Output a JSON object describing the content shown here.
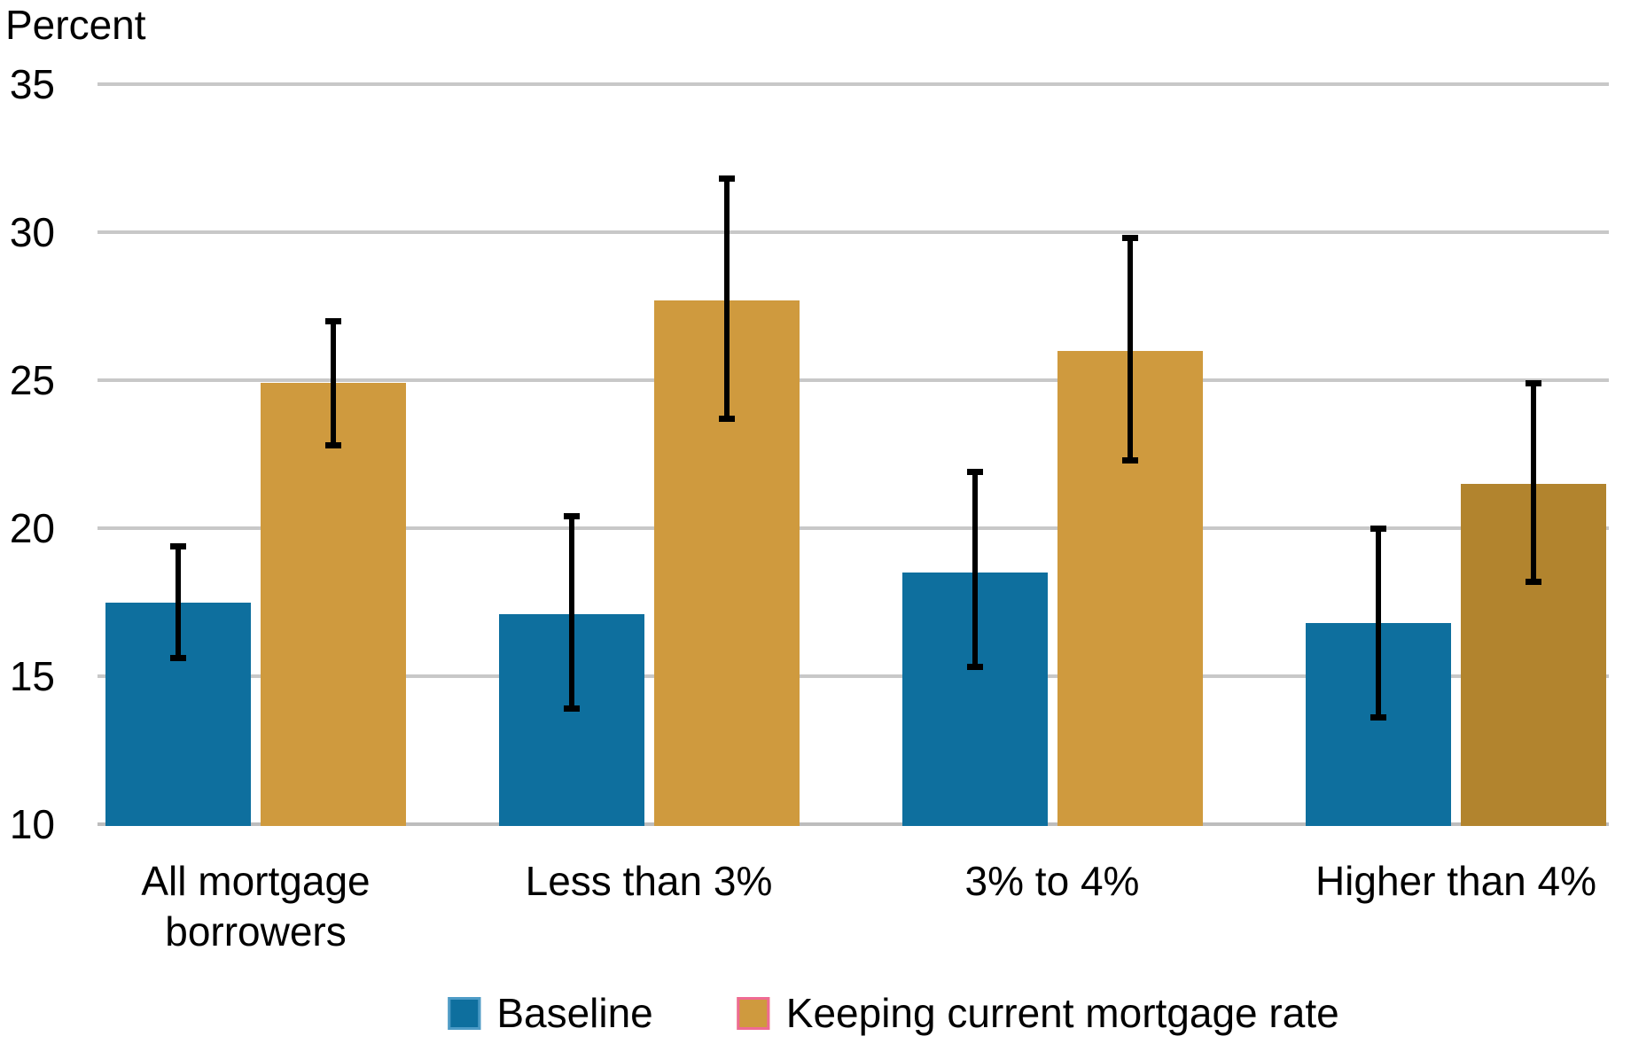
{
  "chart_data": {
    "type": "bar",
    "title": "",
    "ylabel": "Percent",
    "xlabel": "",
    "categories": [
      "All mortgage\nborrowers",
      "Less than 3%",
      "3% to 4%",
      "Higher than 4%"
    ],
    "series": [
      {
        "name": "Baseline",
        "color": "#0e6f9e",
        "swatch_border": "#4d9bc6",
        "values": [
          17.5,
          17.1,
          18.5,
          16.8
        ],
        "err_low": [
          15.6,
          13.9,
          15.3,
          13.6
        ],
        "err_high": [
          19.4,
          20.4,
          21.9,
          20.0
        ]
      },
      {
        "name": "Keeping current mortgage rate",
        "color": "#cf9a3e",
        "swatch_border": "#ef6a93",
        "bar_colors": [
          "#cf9a3e",
          "#cf9a3e",
          "#cf9a3e",
          "#b2842e"
        ],
        "values": [
          24.9,
          27.7,
          26.0,
          21.5
        ],
        "err_low": [
          22.8,
          23.7,
          22.3,
          18.2
        ],
        "err_high": [
          27.0,
          31.8,
          29.8,
          24.9
        ]
      }
    ],
    "y_ticks": [
      10,
      15,
      20,
      25,
      30,
      35
    ],
    "ylim": [
      10,
      35
    ],
    "grid": true,
    "legend_position": "bottom",
    "error_bar_color": "#000000",
    "gridline_color": "#c8c8c8",
    "axis_line_color": "#bdbdbd",
    "text_color": "#000000",
    "background_color": "#ffffff"
  }
}
